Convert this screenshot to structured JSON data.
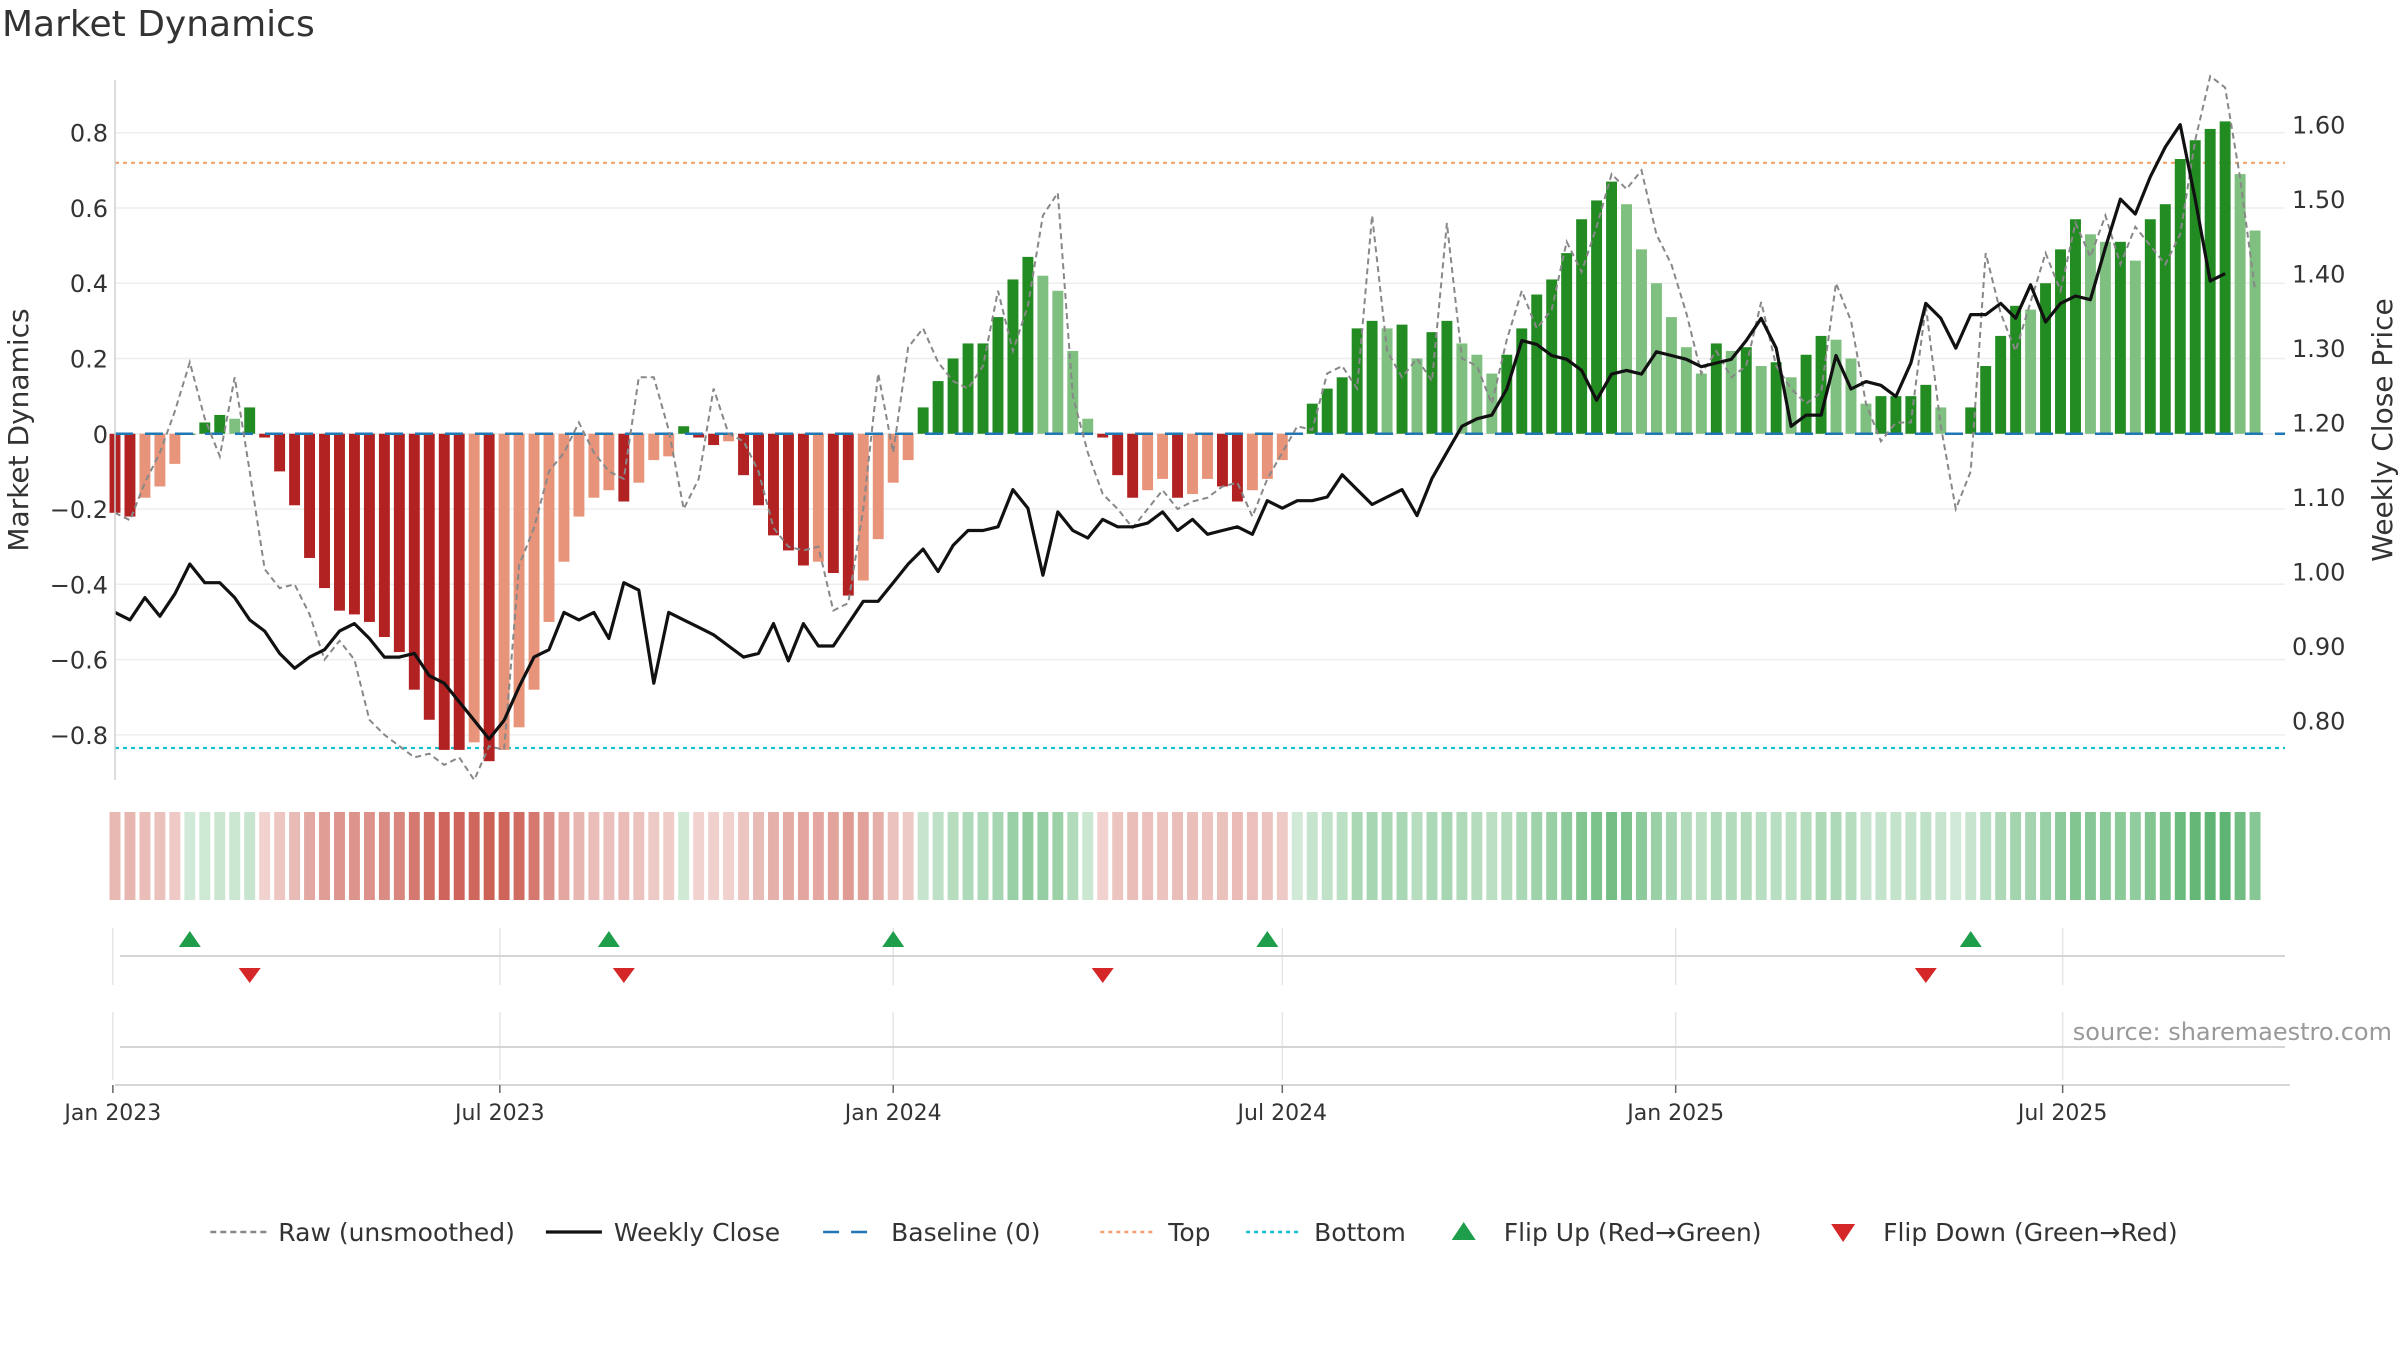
{
  "chart_data": {
    "type": "bar",
    "title": "Market Dynamics",
    "ylabel_left": "Market Dynamics",
    "ylabel_right": "Weekly Close Price",
    "source": "source: sharemaestro.com",
    "ylim_left": [
      -0.92,
      0.94
    ],
    "ylim_right": [
      0.72,
      1.66
    ],
    "yticks_left": [
      -0.8,
      -0.6,
      -0.4,
      -0.2,
      0,
      0.2,
      0.4,
      0.6,
      0.8
    ],
    "ytick_labels_left": [
      "−0.8",
      "−0.6",
      "−0.4",
      "−0.2",
      "0",
      "0.2",
      "0.4",
      "0.6",
      "0.8"
    ],
    "yticks_right": [
      0.8,
      0.9,
      1.0,
      1.1,
      1.2,
      1.3,
      1.4,
      1.5,
      1.6
    ],
    "ytick_labels_right": [
      "0.80",
      "0.90",
      "1.00",
      "1.10",
      "1.20",
      "1.30",
      "1.40",
      "1.50",
      "1.60"
    ],
    "xaxis": {
      "start": "2023-01-02",
      "end": "2025-10-13",
      "ticks": [
        "2023-01-01",
        "2023-07-01",
        "2024-01-01",
        "2024-07-01",
        "2025-01-01",
        "2025-07-01"
      ],
      "tick_labels": [
        "Jan 2023",
        "Jul 2023",
        "Jan 2024",
        "Jul 2024",
        "Jan 2025",
        "Jul 2025"
      ]
    },
    "reference_lines": {
      "baseline": 0,
      "top": 0.72,
      "bottom": -0.835
    },
    "x_start": "2023-01-02",
    "x_step_days": 7,
    "dynamics": [
      -0.21,
      -0.22,
      -0.17,
      -0.14,
      -0.08,
      0.0,
      0.03,
      0.05,
      0.04,
      0.07,
      -0.01,
      -0.1,
      -0.19,
      -0.33,
      -0.41,
      -0.47,
      -0.48,
      -0.5,
      -0.54,
      -0.58,
      -0.68,
      -0.76,
      -0.84,
      -0.84,
      -0.82,
      -0.87,
      -0.84,
      -0.78,
      -0.68,
      -0.5,
      -0.34,
      -0.22,
      -0.17,
      -0.15,
      -0.18,
      -0.13,
      -0.07,
      -0.06,
      0.02,
      -0.01,
      -0.03,
      -0.02,
      -0.11,
      -0.19,
      -0.27,
      -0.31,
      -0.35,
      -0.34,
      -0.37,
      -0.43,
      -0.39,
      -0.28,
      -0.13,
      -0.07,
      0.07,
      0.14,
      0.2,
      0.24,
      0.24,
      0.31,
      0.41,
      0.47,
      0.42,
      0.38,
      0.22,
      0.04,
      -0.01,
      -0.11,
      -0.17,
      -0.15,
      -0.12,
      -0.17,
      -0.16,
      -0.12,
      -0.14,
      -0.18,
      -0.15,
      -0.12,
      -0.07,
      0.0,
      0.08,
      0.12,
      0.15,
      0.28,
      0.3,
      0.28,
      0.29,
      0.2,
      0.27,
      0.3,
      0.24,
      0.21,
      0.16,
      0.21,
      0.28,
      0.37,
      0.41,
      0.48,
      0.57,
      0.62,
      0.67,
      0.61,
      0.49,
      0.4,
      0.31,
      0.23,
      0.16,
      0.24,
      0.22,
      0.23,
      0.18,
      0.19,
      0.15,
      0.21,
      0.26,
      0.25,
      0.2,
      0.08,
      0.1,
      0.1,
      0.1,
      0.13,
      0.07,
      0.0,
      0.07,
      0.18,
      0.26,
      0.34,
      0.33,
      0.4,
      0.49,
      0.57,
      0.53,
      0.51,
      0.51,
      0.46,
      0.57,
      0.61,
      0.73,
      0.78,
      0.81,
      0.83,
      0.69,
      0.54
    ],
    "raw": [
      -0.21,
      -0.23,
      -0.13,
      -0.05,
      0.06,
      0.19,
      0.04,
      -0.06,
      0.15,
      -0.1,
      -0.36,
      -0.41,
      -0.4,
      -0.48,
      -0.6,
      -0.55,
      -0.6,
      -0.76,
      -0.8,
      -0.83,
      -0.86,
      -0.85,
      -0.88,
      -0.86,
      -0.92,
      -0.83,
      -0.84,
      -0.35,
      -0.25,
      -0.1,
      -0.05,
      0.03,
      -0.05,
      -0.1,
      -0.12,
      0.15,
      0.15,
      0.01,
      -0.2,
      -0.12,
      0.12,
      0.0,
      -0.02,
      -0.1,
      -0.25,
      -0.3,
      -0.31,
      -0.3,
      -0.47,
      -0.45,
      -0.2,
      0.16,
      -0.05,
      0.23,
      0.28,
      0.19,
      0.14,
      0.12,
      0.18,
      0.38,
      0.22,
      0.34,
      0.58,
      0.64,
      0.1,
      -0.05,
      -0.16,
      -0.2,
      -0.25,
      -0.2,
      -0.15,
      -0.2,
      -0.18,
      -0.17,
      -0.14,
      -0.13,
      -0.22,
      -0.12,
      -0.05,
      0.02,
      0.01,
      0.16,
      0.18,
      0.12,
      0.58,
      0.22,
      0.15,
      0.2,
      0.14,
      0.56,
      0.2,
      0.18,
      0.08,
      0.25,
      0.38,
      0.28,
      0.33,
      0.51,
      0.43,
      0.55,
      0.69,
      0.65,
      0.7,
      0.53,
      0.45,
      0.32,
      0.16,
      0.22,
      0.15,
      0.18,
      0.35,
      0.18,
      0.12,
      0.08,
      0.11,
      0.4,
      0.3,
      0.08,
      -0.02,
      0.03,
      0.03,
      0.34,
      0.02,
      -0.2,
      -0.1,
      0.48,
      0.32,
      0.22,
      0.35,
      0.48,
      0.38,
      0.56,
      0.47,
      0.58,
      0.45,
      0.55,
      0.5,
      0.45,
      0.53,
      0.78,
      0.95,
      0.92,
      0.68,
      0.38
    ],
    "weekly_close": [
      0.945,
      0.935,
      0.965,
      0.94,
      0.97,
      1.01,
      0.985,
      0.985,
      0.965,
      0.935,
      0.92,
      0.89,
      0.87,
      0.885,
      0.895,
      0.92,
      0.93,
      0.91,
      0.885,
      0.885,
      0.89,
      0.86,
      0.85,
      0.825,
      0.8,
      0.775,
      0.8,
      0.845,
      0.885,
      0.895,
      0.945,
      0.935,
      0.945,
      0.91,
      0.985,
      0.975,
      0.85,
      0.945,
      0.935,
      0.925,
      0.915,
      0.9,
      0.885,
      0.89,
      0.93,
      0.88,
      0.93,
      0.9,
      0.9,
      0.93,
      0.96,
      0.96,
      0.985,
      1.01,
      1.03,
      1.0,
      1.035,
      1.055,
      1.055,
      1.06,
      1.11,
      1.085,
      0.995,
      1.08,
      1.055,
      1.045,
      1.07,
      1.06,
      1.06,
      1.065,
      1.08,
      1.055,
      1.07,
      1.05,
      1.055,
      1.06,
      1.05,
      1.095,
      1.085,
      1.095,
      1.095,
      1.1,
      1.13,
      1.11,
      1.09,
      1.1,
      1.11,
      1.075,
      1.125,
      1.16,
      1.195,
      1.205,
      1.21,
      1.245,
      1.31,
      1.305,
      1.29,
      1.285,
      1.27,
      1.23,
      1.265,
      1.27,
      1.265,
      1.295,
      1.29,
      1.285,
      1.275,
      1.28,
      1.285,
      1.31,
      1.34,
      1.3,
      1.195,
      1.21,
      1.21,
      1.29,
      1.245,
      1.255,
      1.25,
      1.235,
      1.28,
      1.36,
      1.34,
      1.3,
      1.345,
      1.345,
      1.36,
      1.34,
      1.385,
      1.335,
      1.36,
      1.37,
      1.365,
      1.435,
      1.5,
      1.48,
      1.53,
      1.57,
      1.6,
      1.5,
      1.39,
      1.4
    ],
    "flip_up": [
      "2023-02-06",
      "2023-08-21",
      "2024-01-01",
      "2024-06-24",
      "2025-05-19"
    ],
    "flip_down": [
      "2023-03-06",
      "2023-08-28",
      "2024-04-08",
      "2025-04-28"
    ],
    "legend": {
      "placement": "bottom-center",
      "items": [
        {
          "label": "Raw (unsmoothed)",
          "symbol": "dash-line",
          "color": "#888888"
        },
        {
          "label": "Weekly Close",
          "symbol": "line",
          "color": "#111111"
        },
        {
          "label": "Baseline (0)",
          "symbol": "long-dash",
          "color": "#1f77b4"
        },
        {
          "label": "Top",
          "symbol": "dotted-line",
          "color": "#f2a070"
        },
        {
          "label": "Bottom",
          "symbol": "dotted-line",
          "color": "#17becf"
        },
        {
          "label": "Flip Up (Red→Green)",
          "symbol": "triangle-up",
          "color": "#1e9e4a"
        },
        {
          "label": "Flip Down (Green→Red)",
          "symbol": "triangle-down",
          "color": "#d62728"
        }
      ]
    },
    "colors": {
      "strong_red": "#b22222",
      "light_red": "#e8947a",
      "strong_green": "#228b22",
      "light_green": "#7fbf7f",
      "heat_red": "#c0392b",
      "heat_green": "#2e9e48",
      "raw_line": "#888888",
      "close_line": "#111111",
      "top_line": "#f2a070",
      "bottom_line": "#17becf",
      "baseline": "#1f77b4",
      "flip_up": "#1e9e4a",
      "flip_down": "#d62728"
    },
    "grid": true
  }
}
